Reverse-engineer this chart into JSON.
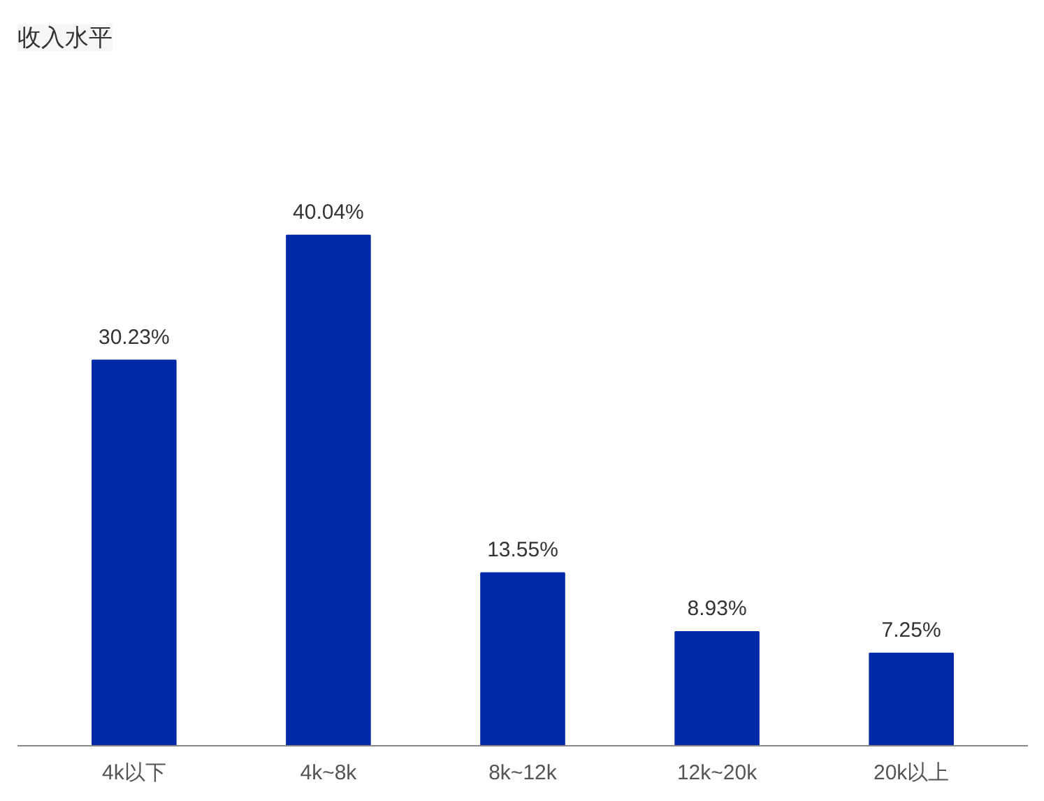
{
  "chart_data": {
    "type": "bar",
    "title": "收入水平",
    "categories": [
      "4k以下",
      "4k~8k",
      "8k~12k",
      "12k~20k",
      "20k以上"
    ],
    "values": [
      30.23,
      40.04,
      13.55,
      8.93,
      7.25
    ],
    "value_labels": [
      "30.23%",
      "40.04%",
      "13.55%",
      "8.93%",
      "7.25%"
    ],
    "color": "#0029a8",
    "grid": false
  }
}
